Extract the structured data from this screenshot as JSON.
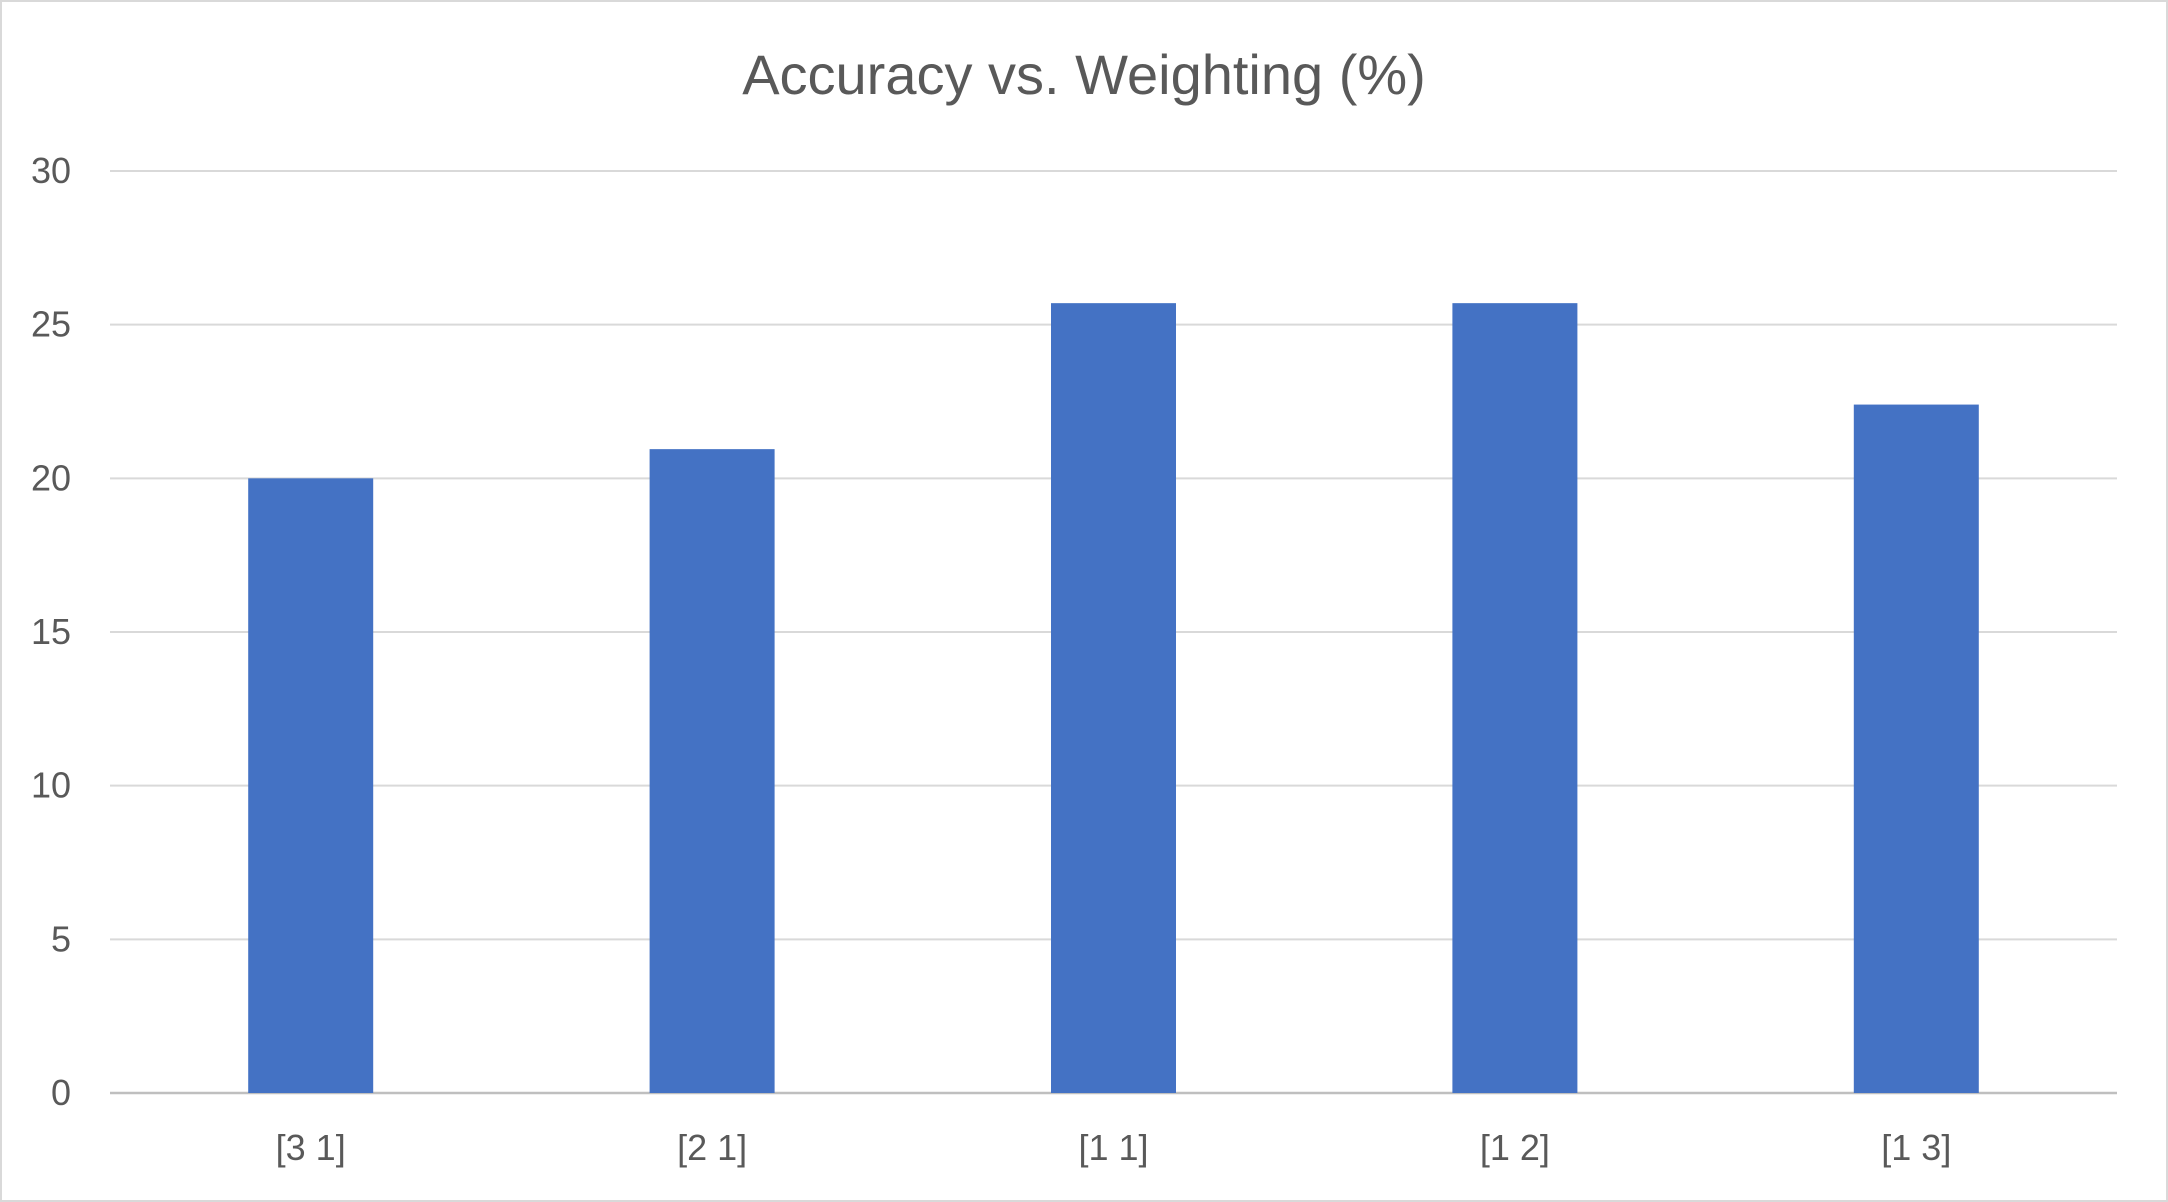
{
  "chart_data": {
    "type": "bar",
    "title": "Accuracy vs. Weighting (%)",
    "xlabel": "",
    "ylabel": "",
    "categories": [
      "[3 1]",
      "[2 1]",
      "[1 1]",
      "[1 2]",
      "[1 3]"
    ],
    "values": [
      20,
      20.95,
      25.7,
      25.7,
      22.4
    ],
    "ylim": [
      0,
      30
    ],
    "yticks": [
      0,
      5,
      10,
      15,
      20,
      25,
      30
    ],
    "grid": true,
    "legend": "none",
    "colors": {
      "bar": "#4472C4",
      "grid": "#D9D9D9",
      "axis_line": "#BFBFBF",
      "text": "#595959"
    }
  }
}
